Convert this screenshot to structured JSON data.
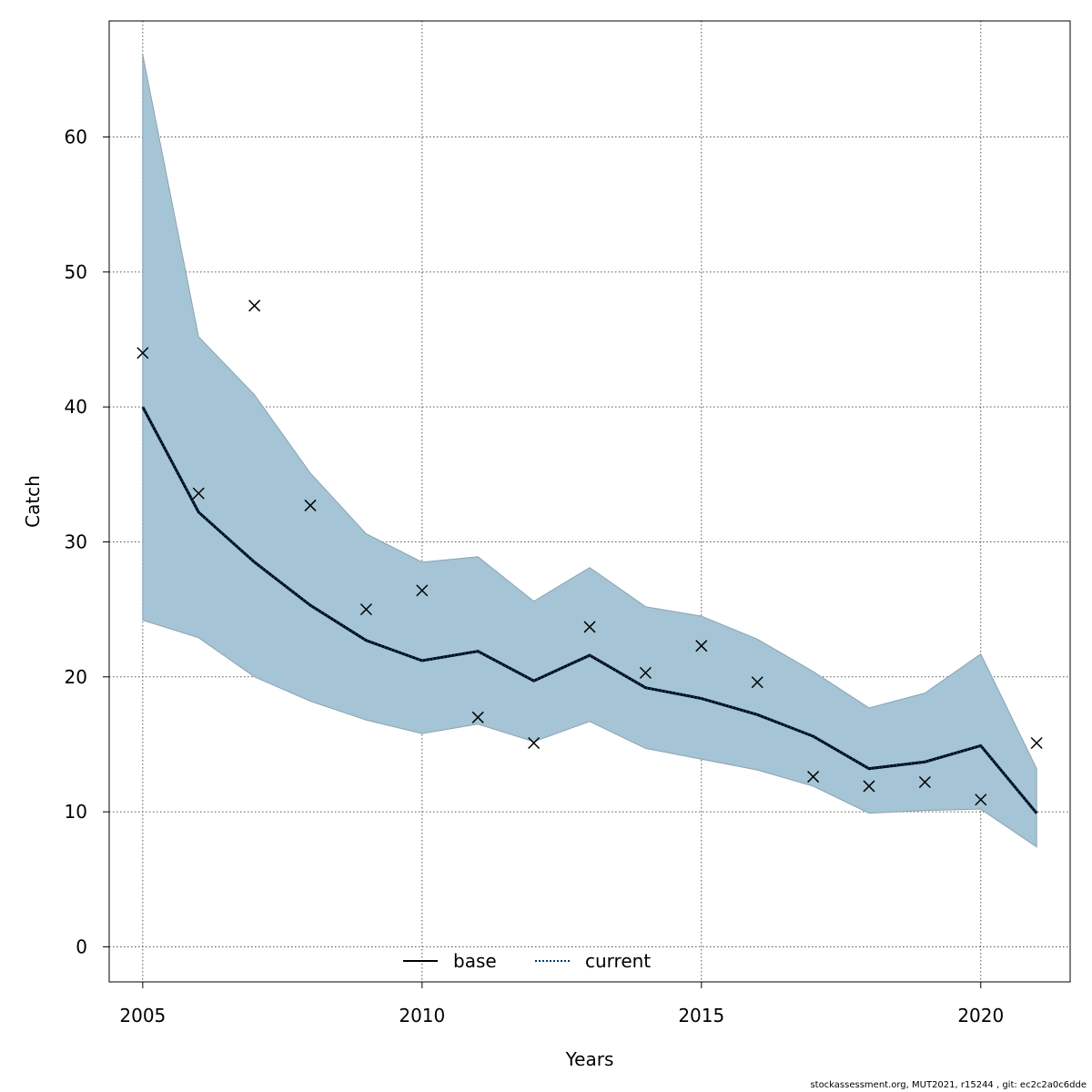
{
  "chart_data": {
    "type": "line",
    "title": "",
    "xlabel": "Years",
    "ylabel": "Catch",
    "xlim": [
      2004.4,
      2021.6
    ],
    "ylim": [
      -2.6,
      68.6
    ],
    "xticks": [
      2005,
      2010,
      2015,
      2020
    ],
    "yticks": [
      0,
      10,
      20,
      30,
      40,
      50,
      60
    ],
    "grid": true,
    "legend": {
      "placement": "bottom-center",
      "entries": [
        "base",
        "current"
      ]
    },
    "x": [
      2005,
      2006,
      2007,
      2008,
      2009,
      2010,
      2011,
      2012,
      2013,
      2014,
      2015,
      2016,
      2017,
      2018,
      2019,
      2020,
      2021
    ],
    "series": [
      {
        "name": "current",
        "kind": "line",
        "style": "dotted",
        "color": "#003a6b",
        "values": [
          40.0,
          32.2,
          28.5,
          25.3,
          22.7,
          21.2,
          21.9,
          19.7,
          21.6,
          19.2,
          18.4,
          17.2,
          15.6,
          13.2,
          13.7,
          14.9,
          9.9
        ]
      },
      {
        "name": "current-ci-upper",
        "kind": "band-upper",
        "values": [
          66.1,
          45.2,
          40.9,
          35.1,
          30.6,
          28.5,
          28.9,
          25.6,
          28.1,
          25.2,
          24.5,
          22.8,
          20.4,
          17.7,
          18.8,
          21.7,
          13.2
        ]
      },
      {
        "name": "current-ci-lower",
        "kind": "band-lower",
        "values": [
          24.2,
          22.9,
          20.0,
          18.2,
          16.8,
          15.8,
          16.5,
          15.2,
          16.7,
          14.7,
          13.9,
          13.1,
          11.9,
          9.9,
          10.1,
          10.2,
          7.4
        ]
      },
      {
        "name": "observed",
        "kind": "points",
        "marker": "x",
        "values": [
          44.0,
          33.6,
          47.5,
          32.7,
          25.0,
          26.4,
          17.0,
          15.1,
          23.7,
          20.3,
          22.3,
          19.6,
          12.6,
          11.9,
          12.2,
          10.9,
          15.1
        ]
      }
    ],
    "colors": {
      "band": "#a5c4d5",
      "band_edge": "#8aa3b1",
      "current_line": "#003a6b",
      "base_line": "#000000"
    }
  },
  "footer": "stockassessment.org, MUT2021, r15244 , git: ec2c2a0c6dde"
}
